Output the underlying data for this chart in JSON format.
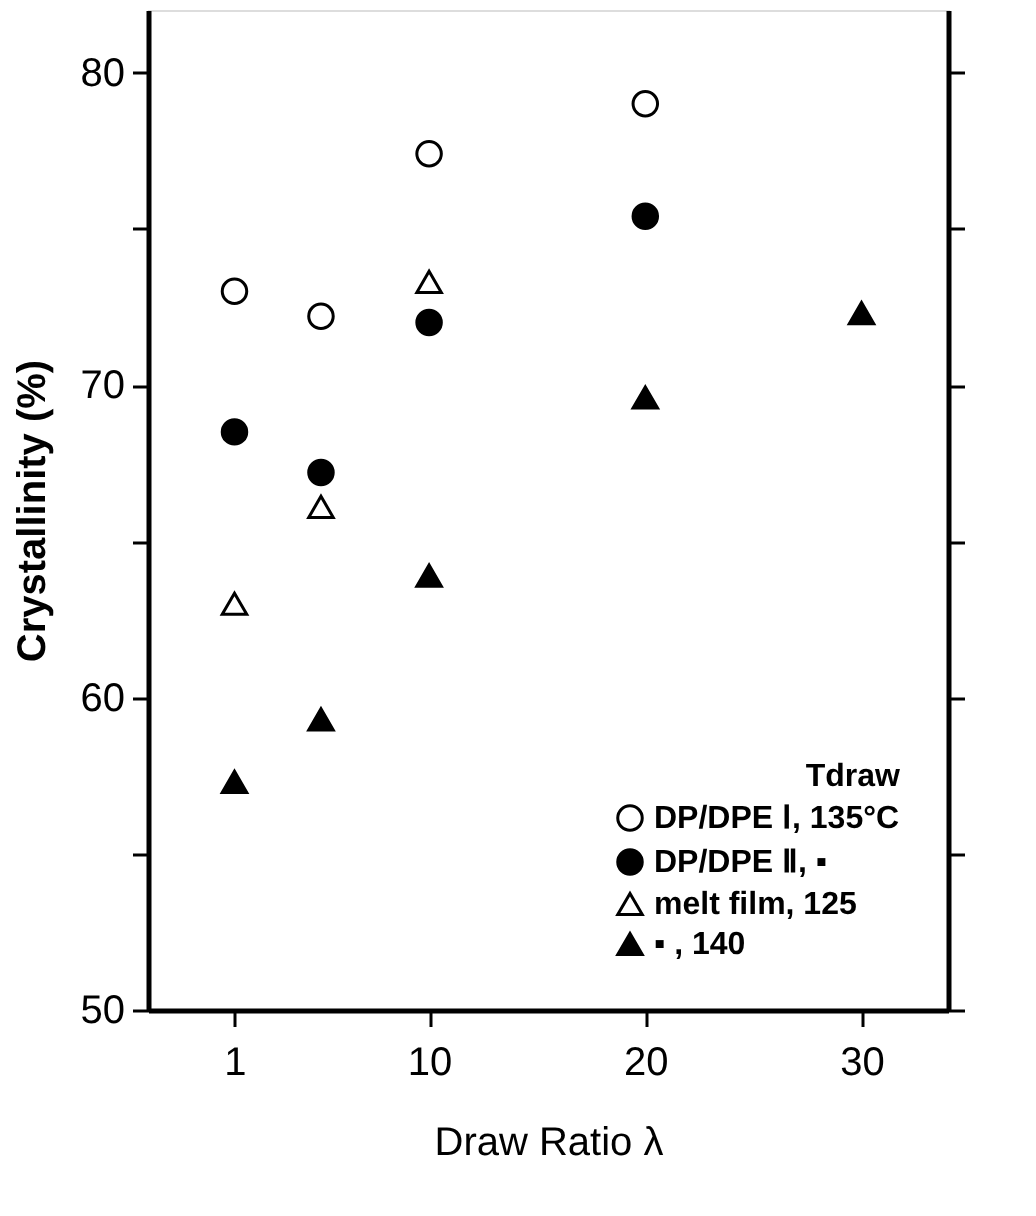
{
  "chart_data": {
    "type": "scatter",
    "xlabel": "Draw Ratio  λ",
    "ylabel": "Crystallinity  (%)",
    "legend_title": "Tdraw",
    "legend": "bottom right",
    "grid": false,
    "xlim": [
      -3,
      34
    ],
    "xticks": [
      1,
      10,
      20,
      30
    ],
    "ylim": [
      50,
      82
    ],
    "yticks": [
      50,
      {
        "value": 55,
        "label": null
      },
      60,
      {
        "value": 65,
        "label": null
      },
      70,
      {
        "value": 75,
        "label": null
      },
      80
    ],
    "series": [
      {
        "name": "DP/DPE Ⅰ, 135°C",
        "color": "#ffffff",
        "marker": "circle",
        "x": [
          1,
          5,
          10,
          20
        ],
        "values": [
          73.0,
          72.2,
          77.4,
          79.0
        ]
      },
      {
        "name": "DP/DPE Ⅱ, ▪",
        "color": "#000000",
        "marker": "circle",
        "x": [
          1,
          5,
          10,
          20
        ],
        "values": [
          68.5,
          67.2,
          72.0,
          75.4
        ]
      },
      {
        "name": "melt film, 125",
        "color": "#ffffff",
        "marker": "triangle",
        "x": [
          1,
          5,
          10
        ],
        "values": [
          63.0,
          66.1,
          73.3
        ]
      },
      {
        "name": "▪    , 140",
        "color": "#000000",
        "marker": "triangle",
        "x": [
          1,
          5,
          10,
          20,
          30
        ],
        "values": [
          57.3,
          59.3,
          63.9,
          69.6,
          72.3
        ]
      }
    ]
  }
}
